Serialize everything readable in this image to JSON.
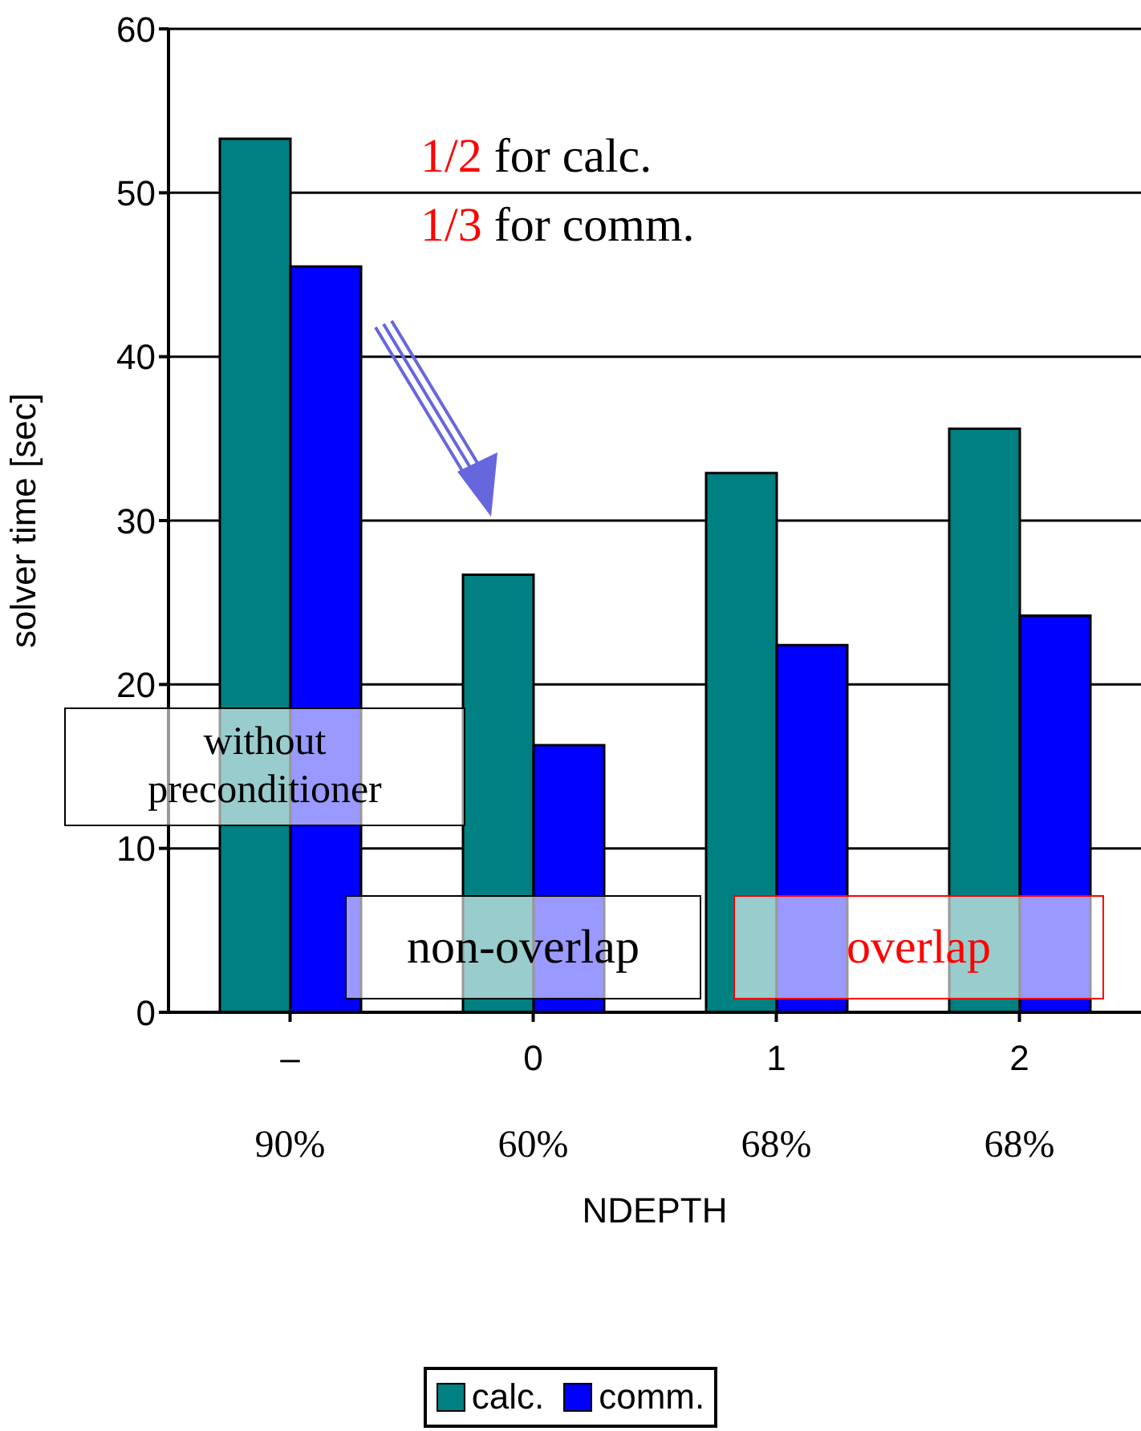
{
  "chart_data": {
    "type": "bar",
    "xlabel": "NDEPTH",
    "ylabel": "solver time [sec]",
    "categories": [
      "–\n90%",
      "0\n60%",
      "1\n68%",
      "2\n68%"
    ],
    "series": [
      {
        "name": "calc.",
        "color": "#008080",
        "values": [
          53.3,
          26.7,
          32.9,
          35.6
        ]
      },
      {
        "name": "comm.",
        "color": "#0000ff",
        "values": [
          45.5,
          16.3,
          22.4,
          24.2
        ]
      }
    ],
    "ylim": [
      0,
      60
    ],
    "yticks": [
      0,
      10,
      20,
      30,
      40,
      50,
      60
    ],
    "grid": "y",
    "legend": "bottom",
    "annotations": [
      "1/2 for calc.",
      "1/3 for comm.",
      "without\npreconditioner",
      "non-overlap",
      "overlap"
    ]
  }
}
